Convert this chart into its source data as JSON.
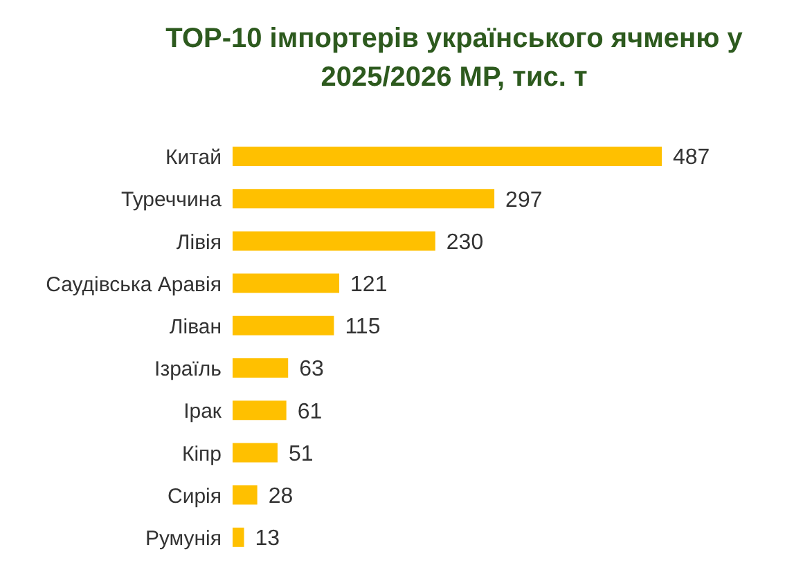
{
  "chart_data": {
    "type": "bar",
    "orientation": "horizontal",
    "title": "TOP-10 імпортерів українського ячменю у 2025/2026 МР, тис. т",
    "categories": [
      "Китай",
      "Туреччина",
      "Лівія",
      "Саудівська Аравія",
      "Ліван",
      "Ізраїль",
      "Ірак",
      "Кіпр",
      "Сирія",
      "Румунія"
    ],
    "values": [
      487,
      297,
      230,
      121,
      115,
      63,
      61,
      51,
      28,
      13
    ],
    "color": "#ffc000",
    "data_labels": true
  }
}
